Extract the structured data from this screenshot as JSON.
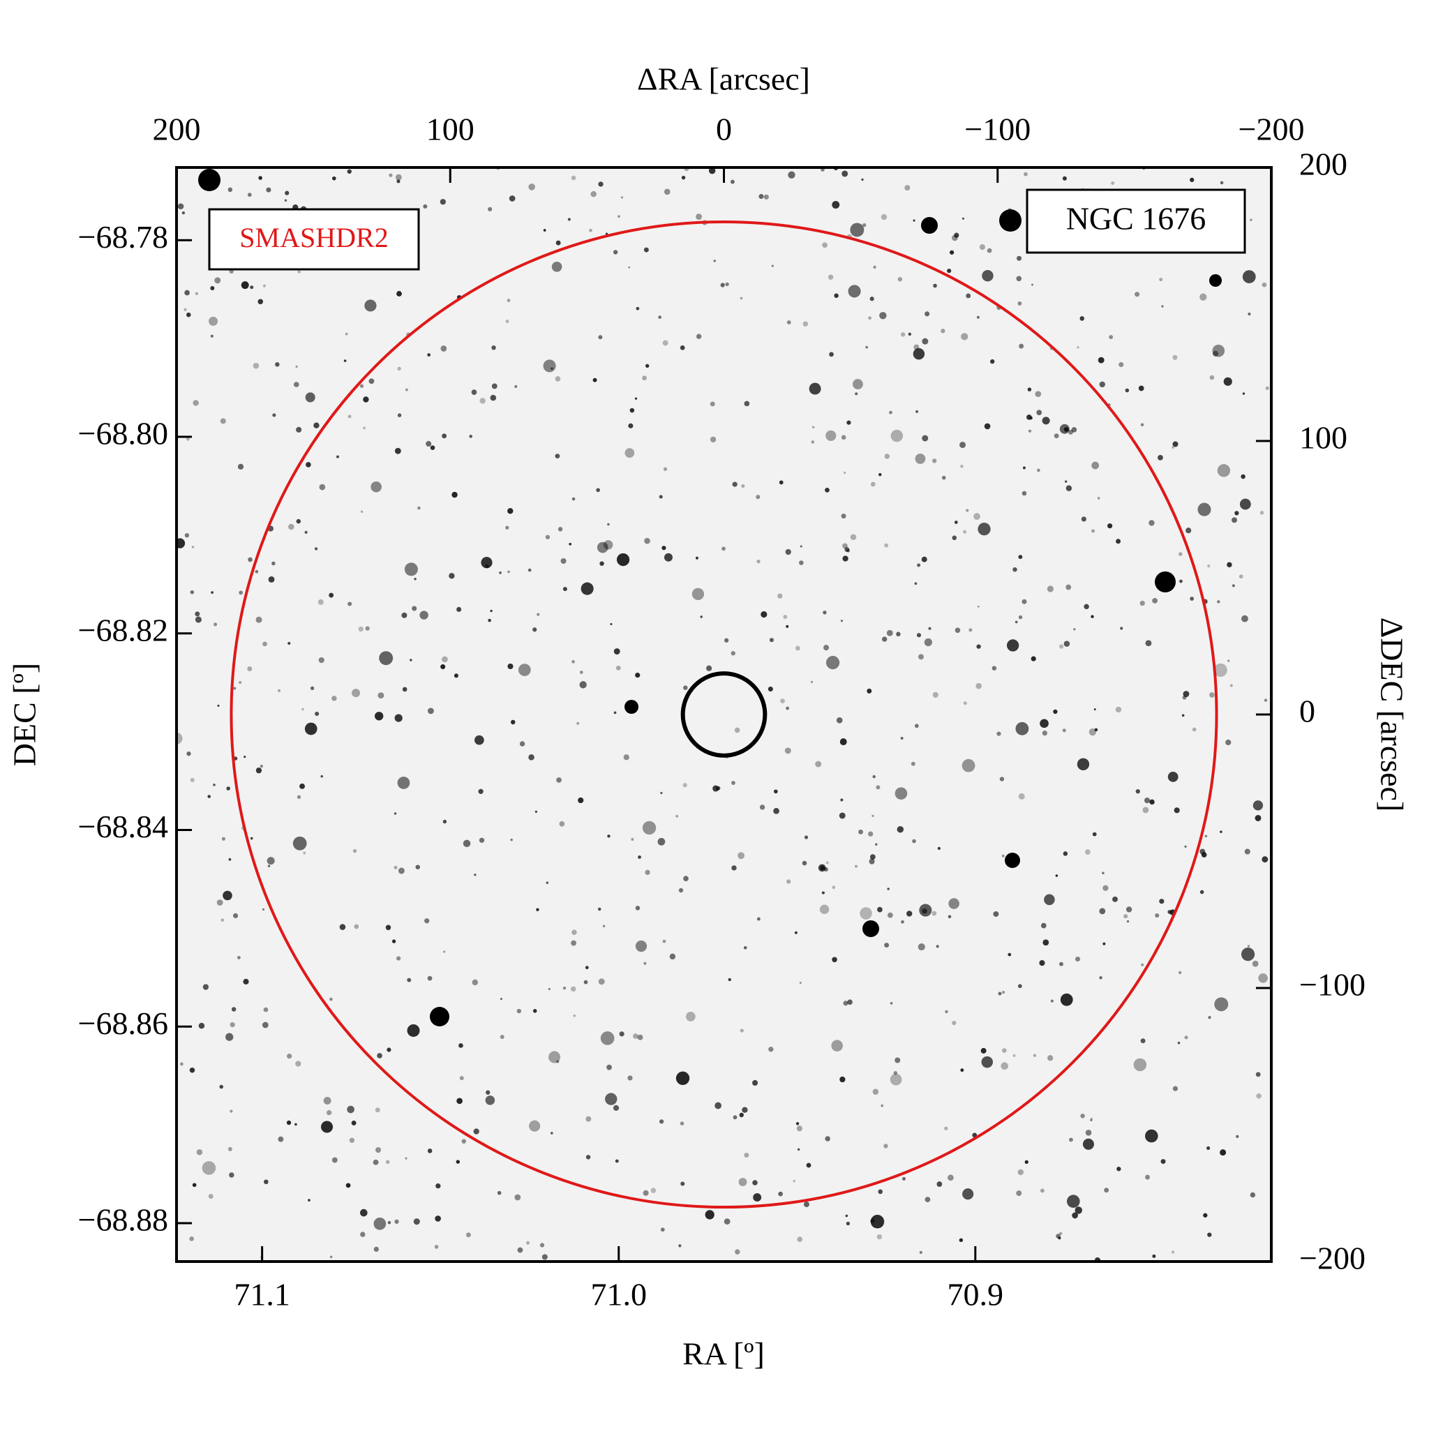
{
  "chart_data": {
    "type": "sky-image",
    "xlabel": "RA [º]",
    "ylabel": "DEC [º]",
    "x2label": "ΔRA [arcsec]",
    "y2label": "ΔDEC [arcsec]",
    "survey_label": "SMASHDR2",
    "object_label": "NGC 1676",
    "xlim": [
      71.124,
      70.817
    ],
    "xticks": [
      71.1,
      {
        "value": 71.0,
        "label": "71.0"
      },
      70.9
    ],
    "ylim": [
      -68.8839,
      -68.7726
    ],
    "yticks": [
      {
        "value": -68.78,
        "label": "−68.78"
      },
      {
        "value": -68.8,
        "label": "−68.80"
      },
      {
        "value": -68.82,
        "label": "−68.82"
      },
      {
        "value": -68.84,
        "label": "−68.84"
      },
      {
        "value": -68.86,
        "label": "−68.86"
      },
      {
        "value": -68.88,
        "label": "−68.88"
      }
    ],
    "x2lim": [
      200,
      -200
    ],
    "x2ticks": [
      200,
      100,
      0,
      {
        "value": -100,
        "label": "−100"
      },
      {
        "value": -200,
        "label": "−200"
      }
    ],
    "y2lim": [
      -200,
      200
    ],
    "y2ticks": [
      200,
      100,
      0,
      {
        "value": -100,
        "label": "−100"
      },
      {
        "value": -200,
        "label": "−200"
      }
    ],
    "circles": [
      {
        "radius": 180,
        "color": "#e01818"
      },
      {
        "radius": 15,
        "color": "#000000"
      }
    ]
  }
}
